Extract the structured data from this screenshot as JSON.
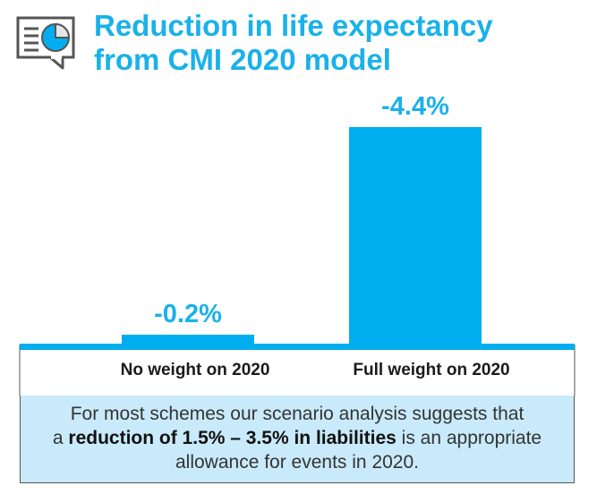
{
  "header": {
    "icon": "chart-in-speech-bubble-icon",
    "title_line1": "Reduction in life expectancy",
    "title_line2": "from CMI 2020 model"
  },
  "chart_data": {
    "type": "bar",
    "categories": [
      "No weight on 2020",
      "Full weight on 2020"
    ],
    "values": [
      -0.2,
      -4.4
    ],
    "value_labels": [
      "-0.2%",
      "-4.4%"
    ],
    "unit": "%",
    "ylim": [
      0,
      -4.4
    ],
    "grid": false,
    "legend": "none",
    "bar_color": "#00aeef",
    "label_color": "#1ab1ea"
  },
  "note": {
    "line1": "For most schemes our scenario analysis suggests that",
    "line2_prefix": "a ",
    "line2_bold": "reduction of 1.5% – 3.5% in liabilities",
    "line2_suffix": " is an appropriate",
    "line3": "allowance for events in 2020."
  },
  "colors": {
    "accent": "#1ab1ea",
    "box_background": "#c9eafa"
  }
}
